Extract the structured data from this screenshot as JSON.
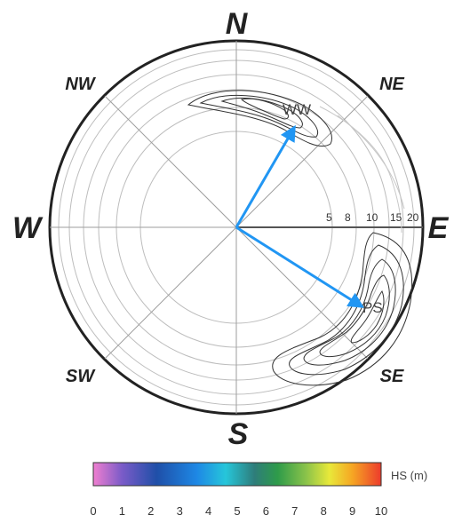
{
  "directions": {
    "n": "N",
    "e": "E",
    "s": "S",
    "w": "W",
    "ne": "NE",
    "se": "SE",
    "sw": "SW",
    "nw": "NW"
  },
  "radial_ticks": [
    "5",
    "8",
    "10",
    "15",
    "20"
  ],
  "peaks": {
    "ww": "WW",
    "ps": "PS"
  },
  "colorbar": {
    "label": "HS (m)",
    "ticks": [
      "0",
      "1",
      "2",
      "3",
      "4",
      "5",
      "6",
      "7",
      "8",
      "9",
      "10"
    ],
    "colors": [
      "#f07fd0",
      "#7a5bc8",
      "#1f4fa8",
      "#1e88e5",
      "#26c6da",
      "#2e7d7a",
      "#2e9b4a",
      "#8bc34a",
      "#e8e83a",
      "#f6a623",
      "#ec3b2c"
    ]
  },
  "arrow_color": "#2196f3"
}
